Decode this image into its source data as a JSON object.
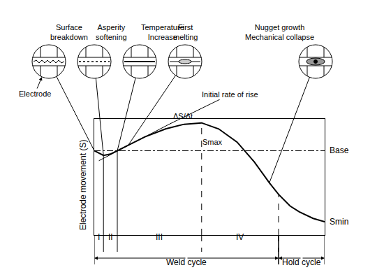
{
  "chart_data": {
    "type": "line",
    "y_title": "Electrode movement (S)",
    "xlim": [
      0,
      100
    ],
    "ylim": [
      0,
      100
    ],
    "tick_labels": false,
    "grid": false,
    "color": "#000000",
    "x": [
      0,
      4,
      7,
      10,
      14.6,
      22,
      31,
      39,
      46.6,
      54,
      62,
      69.5,
      76,
      80,
      85,
      89,
      95,
      100
    ],
    "values": [
      72.6,
      68.6,
      69.7,
      72.6,
      77,
      84.6,
      91.4,
      95.4,
      96.6,
      91.4,
      80,
      62.9,
      45,
      35,
      25,
      20,
      14.3,
      11.4
    ],
    "base": {
      "value": 72.6,
      "label": "Base"
    },
    "max_label": "Smax",
    "min_label": "Smin",
    "tangent": {
      "label": "Initial rate of rise",
      "slope_label": "ΔS/Δt",
      "x": [
        2,
        33
      ],
      "values": [
        64,
        95.9
      ]
    },
    "stages": [
      {
        "label": "I",
        "start": 0,
        "end": 4
      },
      {
        "label": "II",
        "start": 4,
        "end": 10
      },
      {
        "label": "III",
        "start": 10,
        "end": 46.6
      },
      {
        "label": "IV",
        "start": 46.6,
        "end": 80
      }
    ],
    "cycles": [
      {
        "label": "Weld cycle",
        "start": 0,
        "end": 80
      },
      {
        "label": "Hold cycle",
        "start": 80,
        "end": 100
      }
    ],
    "callouts": [
      {
        "label": [
          "Surface",
          "breakdown"
        ],
        "x": 0
      },
      {
        "label": [
          "Asperity",
          "softening"
        ],
        "x": 4
      },
      {
        "label": [
          "Temperature",
          "Increase"
        ],
        "x": 10
      },
      {
        "label": [
          "First",
          "melting"
        ],
        "x": 14.6
      },
      {
        "label": [
          "Nugget growth",
          "Mechanical collapse"
        ],
        "x": 76
      }
    ],
    "electrode_label": "Electrode"
  }
}
